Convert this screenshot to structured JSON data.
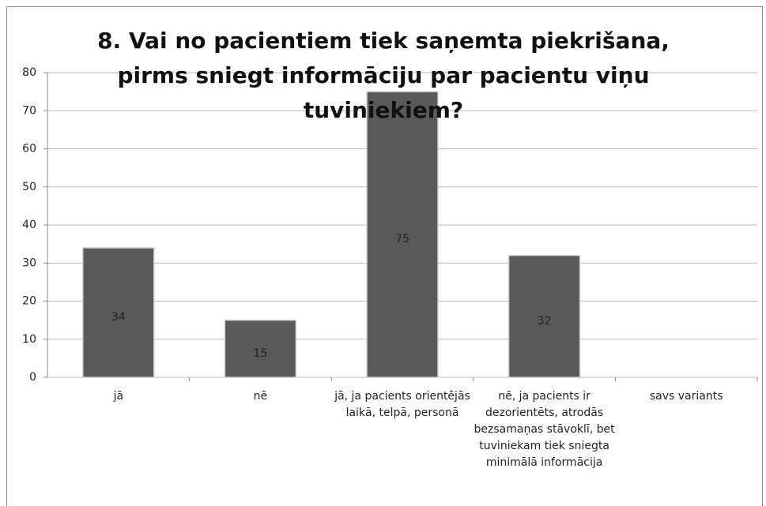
{
  "chart_data": {
    "type": "bar",
    "title": "8. Vai no pacientiem tiek saņemta piekrišana, pirms sniegt informāciju par pacientu viņu tuviniekiem?",
    "categories": [
      "jā",
      "nē",
      "jā, ja pacients orientējās laikā, telpā, personā",
      "nē, ja pacients ir dezorientēts, atrodās bezsamaņas stāvoklī, bet tuviniekam tiek sniegta minimālā informācija",
      "savs variants"
    ],
    "values": [
      34,
      15,
      75,
      32,
      null
    ],
    "color": "#595959",
    "ylim": [
      0,
      80
    ],
    "yticks": [
      0,
      10,
      20,
      30,
      40,
      50,
      60,
      70,
      80
    ],
    "grid": true
  }
}
